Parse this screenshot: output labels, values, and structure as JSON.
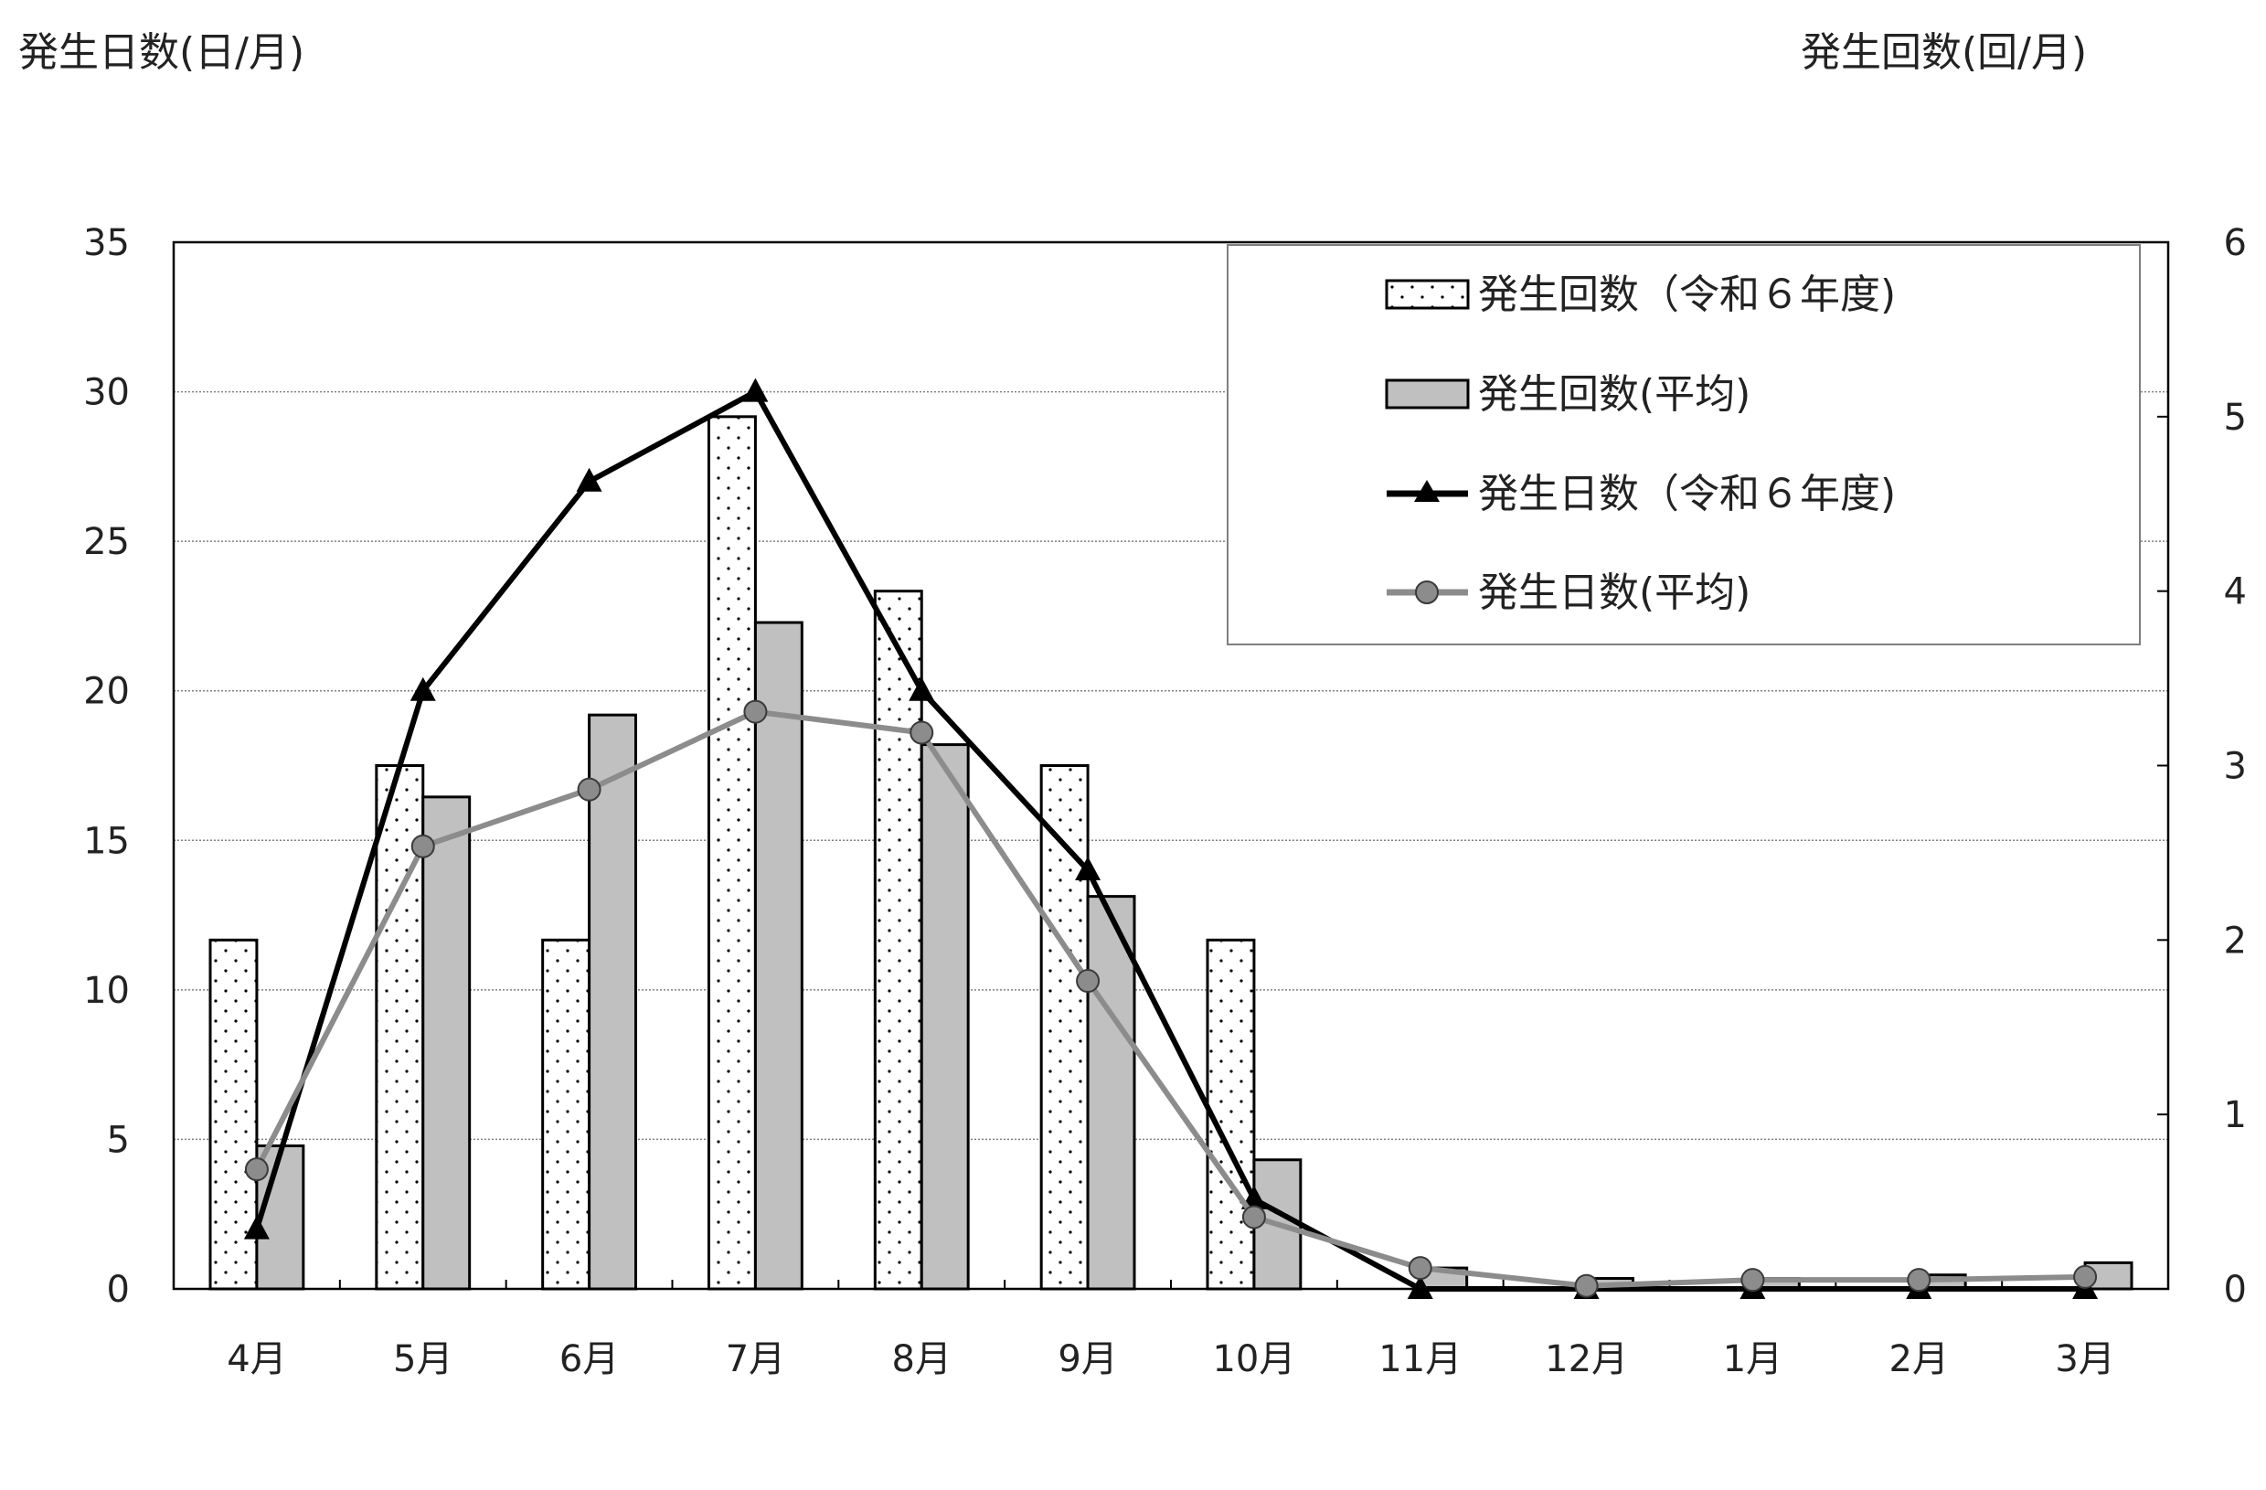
{
  "chart_data": {
    "type": "bar",
    "ylabel_left": "発生日数(日/月)",
    "ylabel_right": "発生回数(回/月)",
    "categories": [
      "4月",
      "5月",
      "6月",
      "7月",
      "8月",
      "9月",
      "10月",
      "11月",
      "12月",
      "1月",
      "2月",
      "3月"
    ],
    "y_left": {
      "range": [
        0,
        35
      ],
      "ticks": [
        0,
        5,
        10,
        15,
        20,
        25,
        30,
        35
      ]
    },
    "y_right": {
      "range": [
        0,
        6
      ],
      "ticks": [
        0,
        1,
        2,
        3,
        4,
        5,
        6
      ]
    },
    "grid": true,
    "legend_position": "top-right",
    "bar_series": [
      {
        "name": "発生回数（令和６年度)",
        "axis": "right",
        "style": "dotted",
        "values": [
          2,
          3,
          2,
          5,
          4,
          3,
          2,
          0,
          0,
          0,
          0,
          0
        ]
      },
      {
        "name": "発生回数(平均)",
        "axis": "right",
        "style": "gray",
        "values": [
          0.82,
          2.82,
          3.29,
          3.82,
          3.12,
          2.25,
          0.74,
          0.12,
          0.06,
          0.06,
          0.08,
          0.15
        ]
      }
    ],
    "line_series": [
      {
        "name": "発生日数（令和６年度)",
        "axis": "left",
        "marker": "triangle",
        "color": "#000000",
        "values": [
          2,
          20,
          27,
          30,
          20,
          14,
          3,
          0,
          0,
          0,
          0,
          0
        ]
      },
      {
        "name": "発生日数(平均)",
        "axis": "left",
        "marker": "circle",
        "color": "#8c8c8c",
        "values": [
          4,
          14.8,
          16.7,
          19.3,
          18.6,
          10.3,
          2.4,
          0.7,
          0.1,
          0.3,
          0.3,
          0.4
        ]
      }
    ],
    "colors": {
      "bar_gray": "#c0c0c0",
      "line_black": "#000000",
      "line_gray": "#8c8c8c",
      "grid": "#808080"
    }
  }
}
